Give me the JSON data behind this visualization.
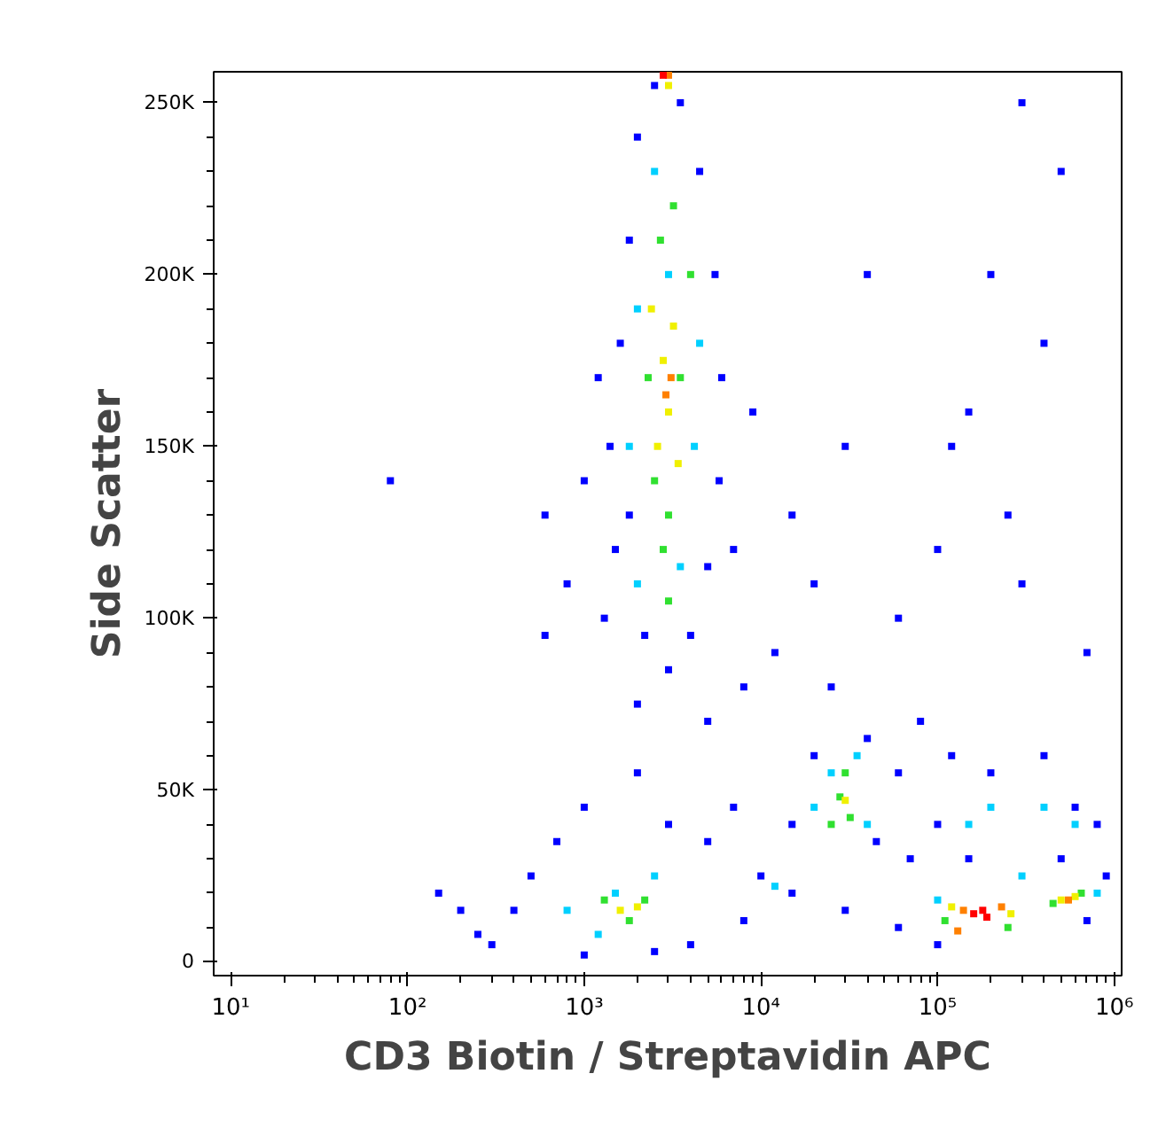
{
  "chart_data": {
    "type": "scatter",
    "xlabel": "CD3 Biotin / Streptavidin APC",
    "ylabel": "Side Scatter",
    "log": "x",
    "marker": "square",
    "xlim": [
      8,
      1100000
    ],
    "ylim": [
      -4000,
      259000
    ],
    "xticks": [
      {
        "value": 10,
        "label": "10¹"
      },
      {
        "value": 100,
        "label": "10²"
      },
      {
        "value": 1000,
        "label": "10³"
      },
      {
        "value": 10000,
        "label": "10⁴"
      },
      {
        "value": 100000,
        "label": "10⁵"
      },
      {
        "value": 1000000,
        "label": "10⁶"
      }
    ],
    "yticks": [
      0,
      {
        "value": 50000,
        "label": "50K"
      },
      {
        "value": 100000,
        "label": "100K"
      },
      {
        "value": 150000,
        "label": "150K"
      },
      {
        "value": 200000,
        "label": "200K"
      },
      {
        "value": 250000,
        "label": "250K"
      }
    ],
    "series": [
      {
        "color": "#0000ff",
        "x": [
          1300,
          1500,
          1400,
          1600,
          1800,
          2000,
          2500,
          3500,
          4500,
          5500,
          6000,
          5800,
          5000,
          4000,
          3000,
          2200,
          1800,
          1200,
          1000,
          7000,
          800,
          9000,
          600,
          2000,
          5000,
          8000,
          12000,
          20000,
          30000,
          40000,
          15000,
          25000,
          60000,
          100000,
          150000,
          200000,
          300000,
          500000,
          120000,
          250000,
          400000,
          700000,
          80000,
          300000,
          400,
          500,
          700,
          1000,
          2000,
          3000,
          5000,
          7000,
          10000,
          15000,
          20000,
          45000,
          60000,
          40000,
          15000,
          300,
          200,
          250,
          4000,
          8000,
          30000,
          60000,
          70000,
          100000,
          120000,
          200000,
          400000,
          600000,
          800000,
          900000,
          500000,
          150000,
          100000,
          700000,
          2500,
          1000,
          80,
          600,
          150
        ],
        "values": [
          100000,
          120000,
          150000,
          180000,
          210000,
          240000,
          255000,
          250000,
          230000,
          200000,
          170000,
          140000,
          115000,
          95000,
          85000,
          95000,
          130000,
          170000,
          140000,
          120000,
          110000,
          160000,
          130000,
          75000,
          70000,
          80000,
          90000,
          110000,
          150000,
          200000,
          130000,
          80000,
          100000,
          120000,
          160000,
          200000,
          250000,
          230000,
          150000,
          130000,
          180000,
          90000,
          70000,
          110000,
          15000,
          25000,
          35000,
          45000,
          55000,
          40000,
          35000,
          45000,
          25000,
          20000,
          60000,
          35000,
          55000,
          65000,
          40000,
          5000,
          15000,
          8000,
          5000,
          12000,
          15000,
          10000,
          30000,
          40000,
          60000,
          55000,
          60000,
          45000,
          40000,
          25000,
          30000,
          30000,
          5000,
          12000,
          3000,
          2000,
          140000,
          95000,
          20000
        ]
      },
      {
        "color": "#00d0ff",
        "x": [
          2000,
          3500,
          2500,
          3000,
          4500,
          2000,
          1800,
          4200,
          1500,
          2500,
          800,
          25000,
          40000,
          35000,
          20000,
          200000,
          400000,
          150000,
          100000,
          800000,
          600000,
          300000,
          12000,
          1200
        ],
        "values": [
          110000,
          115000,
          230000,
          200000,
          180000,
          190000,
          150000,
          150000,
          20000,
          25000,
          15000,
          55000,
          40000,
          60000,
          45000,
          45000,
          45000,
          40000,
          18000,
          20000,
          40000,
          25000,
          22000,
          8000
        ]
      },
      {
        "color": "#30e030",
        "x": [
          2500,
          3000,
          3500,
          2300,
          2700,
          3200,
          2800,
          4000,
          1300,
          1800,
          2200,
          28000,
          32000,
          25000,
          30000,
          110000,
          250000,
          450000,
          650000,
          3000
        ],
        "values": [
          140000,
          130000,
          170000,
          170000,
          210000,
          220000,
          120000,
          200000,
          18000,
          12000,
          18000,
          48000,
          42000,
          40000,
          55000,
          12000,
          10000,
          17000,
          20000,
          105000
        ]
      },
      {
        "color": "#f0f000",
        "x": [
          2800,
          3000,
          2600,
          3200,
          2400,
          3400,
          1600,
          2000,
          30000,
          120000,
          260000,
          500000,
          600000,
          3000
        ],
        "values": [
          175000,
          160000,
          150000,
          185000,
          190000,
          145000,
          15000,
          16000,
          47000,
          16000,
          14000,
          18000,
          19000,
          255000
        ]
      },
      {
        "color": "#ff8000",
        "x": [
          2900,
          3100,
          140000,
          130000,
          230000,
          550000,
          3000
        ],
        "values": [
          165000,
          170000,
          15000,
          9000,
          16000,
          18000,
          258000
        ]
      },
      {
        "color": "#ff0000",
        "x": [
          160000,
          180000,
          190000,
          2800
        ],
        "values": [
          14000,
          15000,
          13000,
          258000
        ]
      }
    ]
  }
}
